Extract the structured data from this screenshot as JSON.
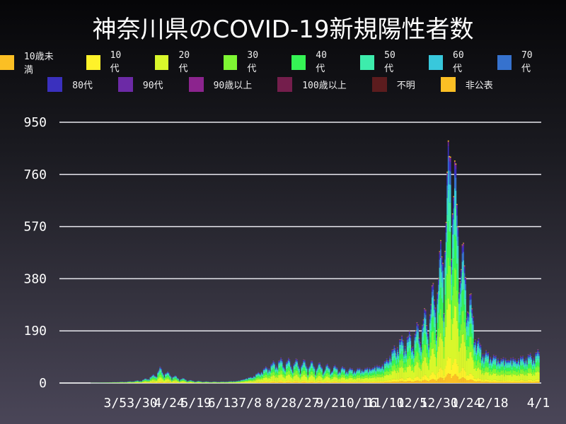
{
  "chart_data": {
    "type": "bar",
    "stacked": true,
    "title": "神奈川県のCOVID-19新規陽性者数",
    "xlabel": "",
    "ylabel": "",
    "ylim": [
      0,
      1000
    ],
    "yticks": [
      "0",
      "190",
      "380",
      "570",
      "760",
      "950"
    ],
    "ytick_values": [
      0,
      190,
      380,
      570,
      760,
      950
    ],
    "xticks": [
      "3/5",
      "3/30",
      "4/24",
      "5/19",
      "6/13",
      "7/8",
      "8/2",
      "8/27",
      "9/21",
      "10/16",
      "11/10",
      "12/5",
      "12/30",
      "1/24",
      "2/18",
      "4/1"
    ],
    "xtick_dates": [
      "2020-03-05",
      "2020-03-30",
      "2020-04-24",
      "2020-05-19",
      "2020-06-13",
      "2020-07-08",
      "2020-08-02",
      "2020-08-27",
      "2020-09-21",
      "2020-10-16",
      "2020-11-10",
      "2020-12-05",
      "2020-12-30",
      "2021-01-24",
      "2021-02-18",
      "2021-04-01"
    ],
    "xlim": [
      "2020-01-16",
      "2021-04-01"
    ],
    "grid": true,
    "legend_position": "top",
    "total_daily_approx": {
      "dates": [
        "2020-01-16",
        "2020-02-01",
        "2020-02-15",
        "2020-03-01",
        "2020-03-15",
        "2020-03-29",
        "2020-04-08",
        "2020-04-15",
        "2020-04-22",
        "2020-05-01",
        "2020-05-15",
        "2020-05-29",
        "2020-06-12",
        "2020-06-26",
        "2020-07-10",
        "2020-07-24",
        "2020-08-02",
        "2020-08-16",
        "2020-08-30",
        "2020-09-13",
        "2020-09-27",
        "2020-10-11",
        "2020-10-25",
        "2020-11-08",
        "2020-11-22",
        "2020-12-06",
        "2020-12-20",
        "2020-12-30",
        "2021-01-06",
        "2021-01-09",
        "2021-01-13",
        "2021-01-20",
        "2021-01-27",
        "2021-02-03",
        "2021-02-10",
        "2021-02-24",
        "2021-03-10",
        "2021-03-24",
        "2021-04-01"
      ],
      "values": [
        0,
        1,
        1,
        3,
        5,
        10,
        25,
        50,
        35,
        20,
        8,
        5,
        5,
        8,
        25,
        60,
        80,
        75,
        70,
        60,
        55,
        50,
        55,
        70,
        150,
        170,
        250,
        400,
        650,
        900,
        700,
        450,
        300,
        150,
        110,
        90,
        90,
        100,
        110
      ]
    },
    "series": [
      {
        "name": "10歳未満",
        "color": "#fbbf24",
        "share": 0.04
      },
      {
        "name": "10代",
        "color": "#fef22a",
        "share": 0.07
      },
      {
        "name": "20代",
        "color": "#d9f72b",
        "share": 0.24
      },
      {
        "name": "30代",
        "color": "#7ef733",
        "share": 0.17
      },
      {
        "name": "40代",
        "color": "#35f455",
        "share": 0.15
      },
      {
        "name": "50代",
        "color": "#3decac",
        "share": 0.13
      },
      {
        "name": "60代",
        "color": "#38c8dc",
        "share": 0.08
      },
      {
        "name": "70代",
        "color": "#3672ce",
        "share": 0.06
      },
      {
        "name": "80代",
        "color": "#3a30be",
        "share": 0.04
      },
      {
        "name": "90代",
        "color": "#6c2aa6",
        "share": 0.015
      },
      {
        "name": "90歳以上",
        "color": "#8c248e",
        "share": 0.005
      },
      {
        "name": "100歳以上",
        "color": "#741e4c",
        "share": 0
      },
      {
        "name": "不明",
        "color": "#5c1c1e",
        "share": 0
      },
      {
        "name": "非公表",
        "color": "#fbbf24",
        "share": 0.005
      }
    ]
  }
}
